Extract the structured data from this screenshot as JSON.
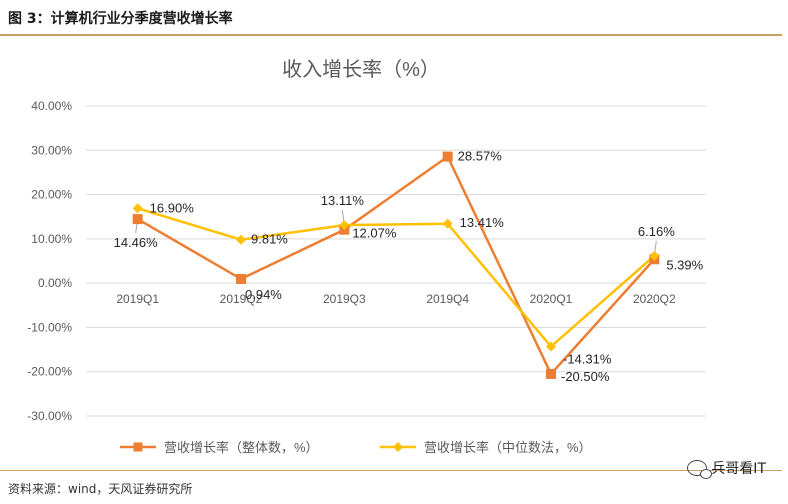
{
  "figure_title": "图 3：计算机行业分季度营收增长率",
  "source": "资料来源：wind，天风证券研究所",
  "watermark": "兵哥看IT",
  "chart_data": {
    "type": "line",
    "title": "收入增长率（%）",
    "categories": [
      "2019Q1",
      "2019Q2",
      "2019Q3",
      "2019Q4",
      "2020Q1",
      "2020Q2"
    ],
    "ylim": [
      -30,
      40
    ],
    "yticks": [
      40,
      30,
      20,
      10,
      0,
      -10,
      -20,
      -30
    ],
    "ytick_labels": [
      "40.00%",
      "30.00%",
      "20.00%",
      "10.00%",
      "0.00%",
      "-10.00%",
      "-20.00%",
      "-30.00%"
    ],
    "grid": true,
    "legend_position": "bottom",
    "series": [
      {
        "name": "营收增长率（整体数，%）",
        "color": "#ed7d31",
        "marker": "square",
        "values": [
          14.46,
          0.94,
          12.07,
          28.57,
          -20.5,
          5.39
        ],
        "labels": [
          "14.46%",
          "0.94%",
          "12.07%",
          "28.57%",
          "-20.50%",
          "5.39%"
        ]
      },
      {
        "name": "营收增长率（中位数法，%）",
        "color": "#ffc000",
        "marker": "diamond",
        "values": [
          16.9,
          9.81,
          13.11,
          13.41,
          -14.31,
          6.16
        ],
        "labels": [
          "16.90%",
          "9.81%",
          "13.11%",
          "13.41%",
          "-14.31%",
          "6.16%"
        ]
      }
    ]
  }
}
